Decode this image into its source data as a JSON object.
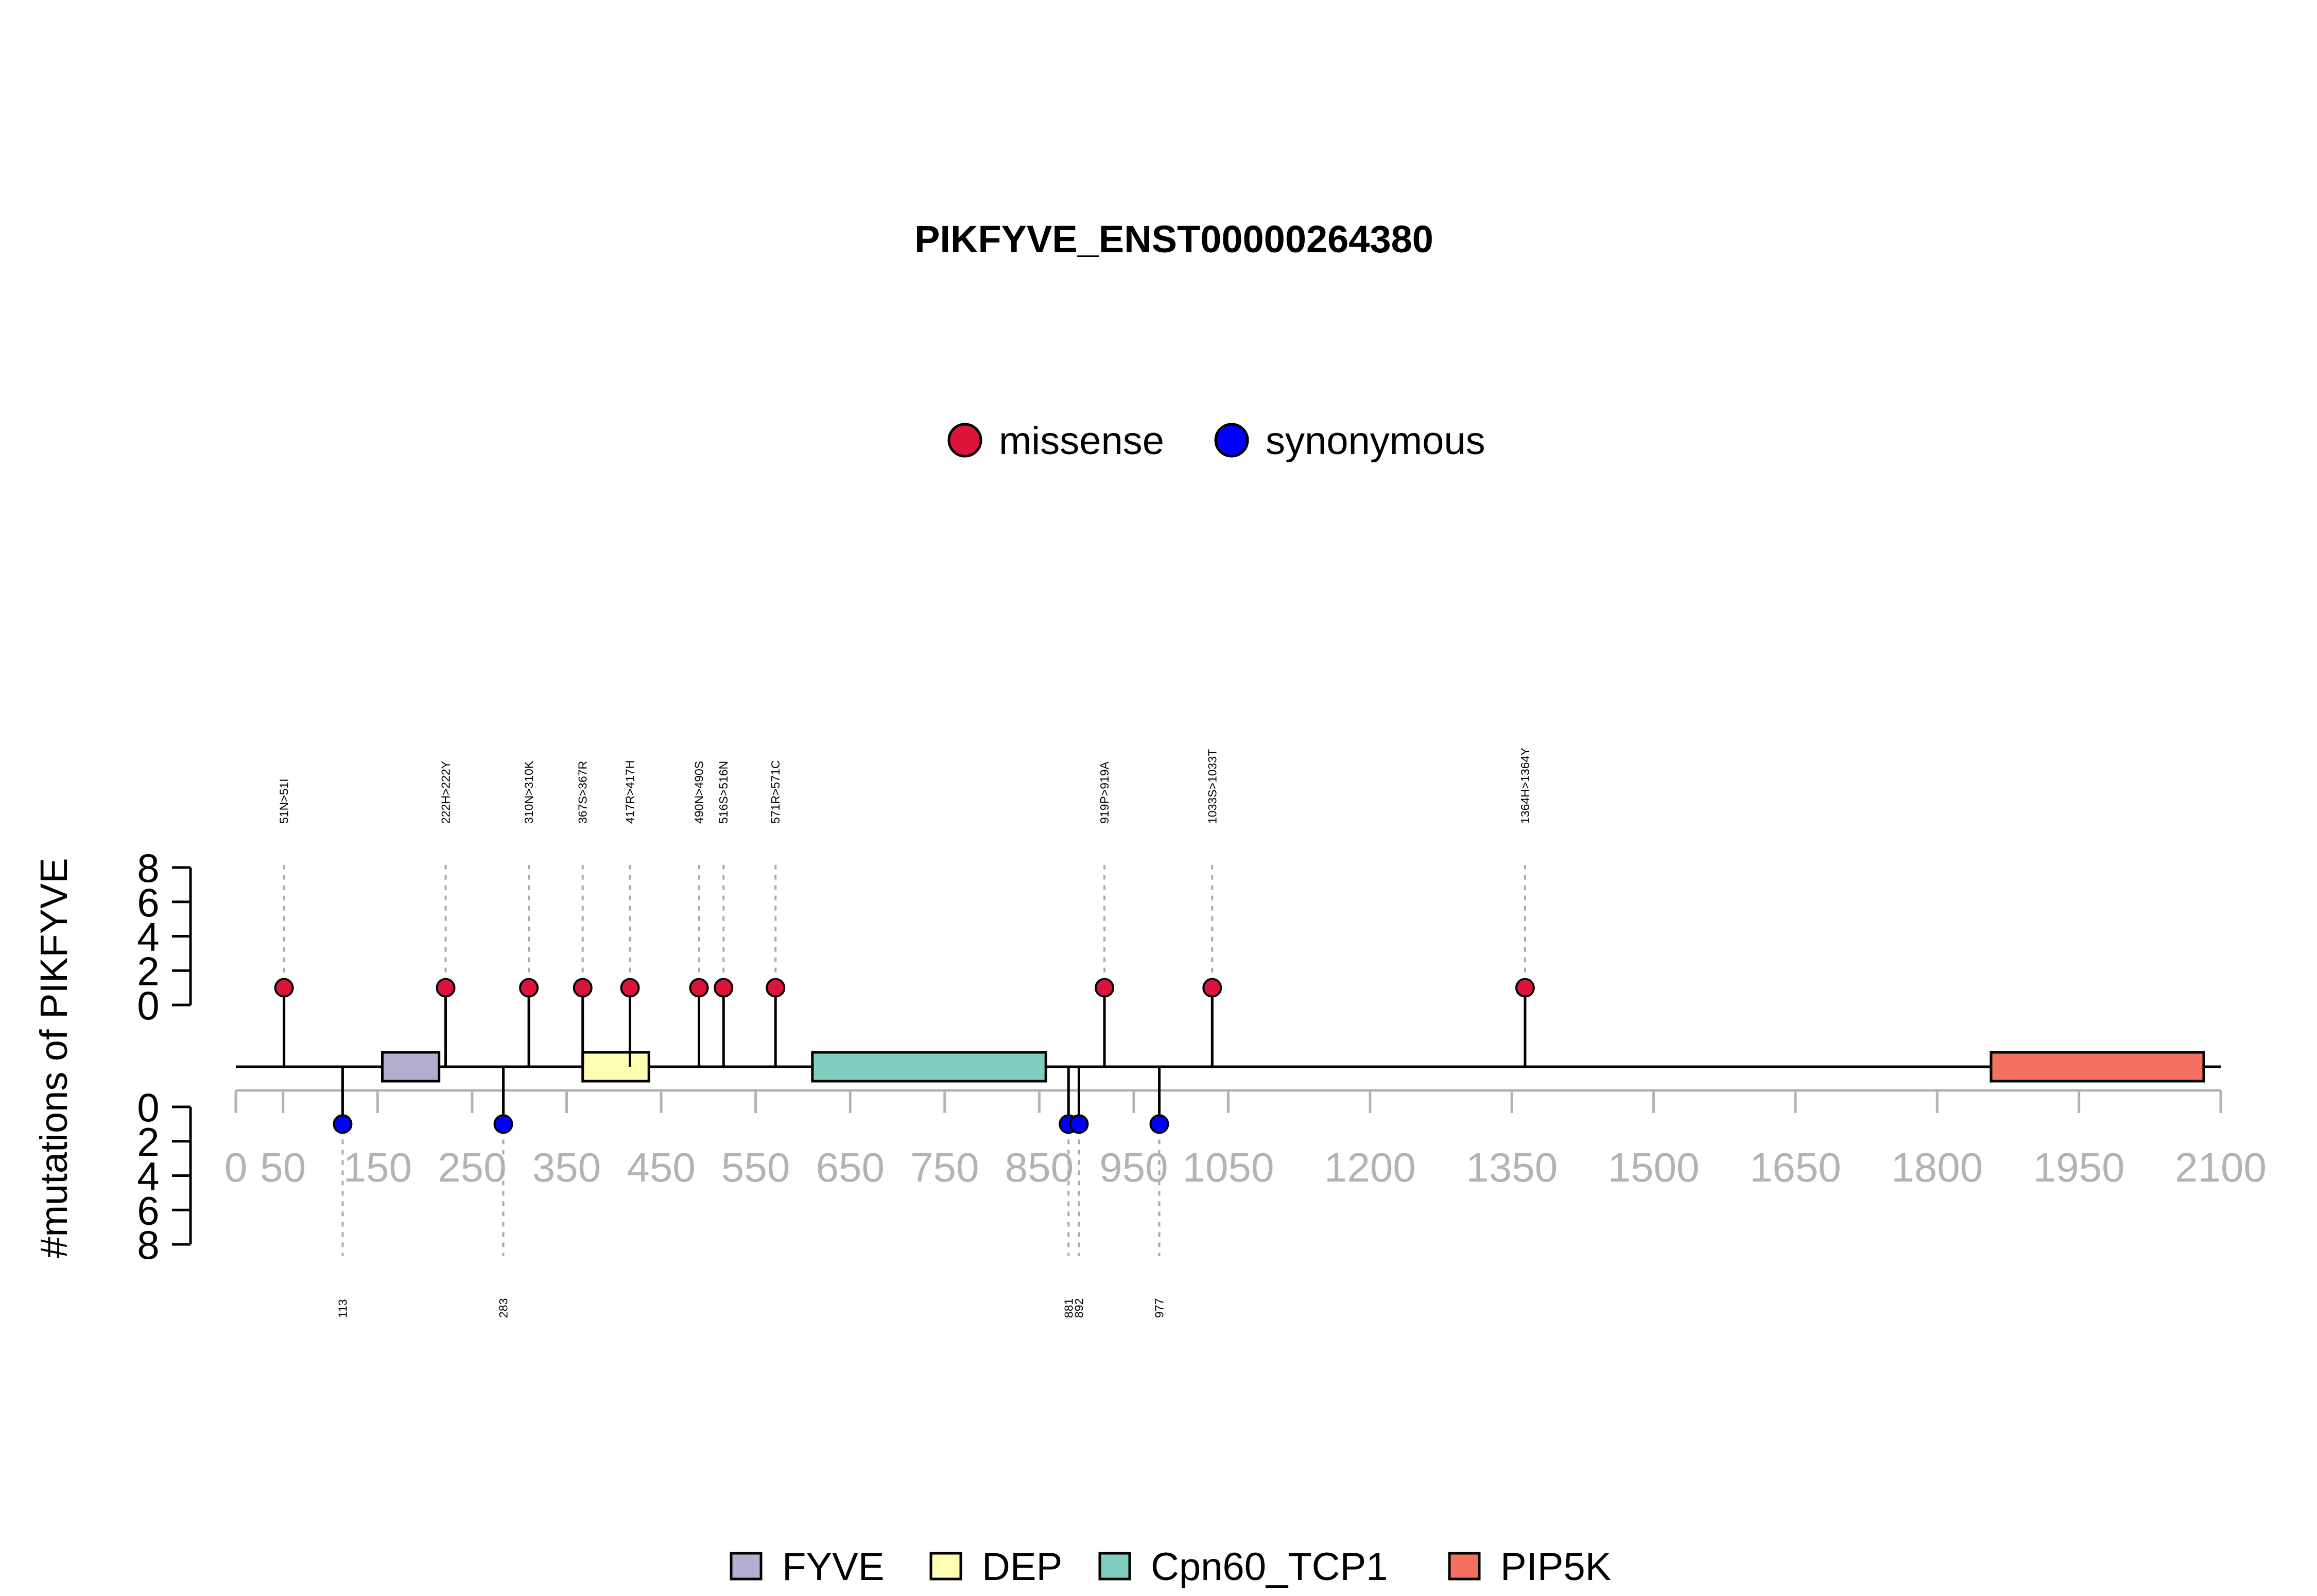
{
  "chart_data": {
    "type": "lollipop",
    "title": "PIKFYVE_ENST00000264380",
    "ylabel": "#mutations of PIKFYVE",
    "xlim": [
      0,
      2100
    ],
    "x_ticks": [
      0,
      50,
      150,
      250,
      350,
      450,
      550,
      650,
      750,
      850,
      950,
      1050,
      1200,
      1350,
      1500,
      1650,
      1800,
      1950,
      2100
    ],
    "x_tick_labels": [
      "0",
      "50",
      "150",
      "250",
      "350",
      "450",
      "550",
      "650",
      "750",
      "850",
      "950",
      "1050",
      "1200",
      "1350",
      "1500",
      "1650",
      "1800",
      "1950",
      "2100"
    ],
    "y_ticks": [
      0,
      2,
      4,
      6,
      8
    ],
    "y_tick_labels": [
      "0",
      "2",
      "4",
      "6",
      "8"
    ],
    "ylim": [
      0,
      8
    ],
    "mutation_legend": [
      {
        "name": "missense",
        "color": "#DC143C"
      },
      {
        "name": "synonymous",
        "color": "#0000FF"
      }
    ],
    "missense": [
      {
        "position": 51,
        "count": 1,
        "label": "51N>51I"
      },
      {
        "position": 222,
        "count": 1,
        "label": "222H>222Y"
      },
      {
        "position": 310,
        "count": 1,
        "label": "310N>310K"
      },
      {
        "position": 367,
        "count": 1,
        "label": "367S>367R"
      },
      {
        "position": 417,
        "count": 1,
        "label": "417R>417H"
      },
      {
        "position": 490,
        "count": 1,
        "label": "490N>490S"
      },
      {
        "position": 516,
        "count": 1,
        "label": "516S>516N"
      },
      {
        "position": 571,
        "count": 1,
        "label": "571R>571C"
      },
      {
        "position": 919,
        "count": 1,
        "label": "919P>919A"
      },
      {
        "position": 1033,
        "count": 1,
        "label": "1033S>1033T"
      },
      {
        "position": 1364,
        "count": 1,
        "label": "1364H>1364Y"
      }
    ],
    "synonymous": [
      {
        "position": 113,
        "count": 1,
        "label": "113"
      },
      {
        "position": 283,
        "count": 1,
        "label": "283"
      },
      {
        "position": 881,
        "count": 1,
        "label": "881"
      },
      {
        "position": 892,
        "count": 1,
        "label": "892"
      },
      {
        "position": 977,
        "count": 1,
        "label": "977"
      }
    ],
    "domains": [
      {
        "name": "FYVE",
        "start": 155,
        "end": 215,
        "color": "#B3AED0"
      },
      {
        "name": "DEP",
        "start": 367,
        "end": 437,
        "color": "#FFFFB3"
      },
      {
        "name": "Cpn60_TCP1",
        "start": 610,
        "end": 857,
        "color": "#80CDC1"
      },
      {
        "name": "PIP5K",
        "start": 1857,
        "end": 2082,
        "color": "#F47060"
      }
    ]
  }
}
